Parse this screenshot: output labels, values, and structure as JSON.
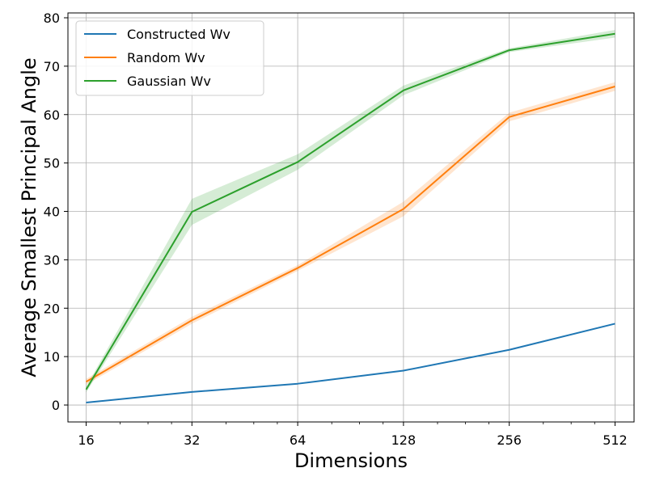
{
  "chart_data": {
    "type": "line",
    "title": "",
    "xlabel": "Dimensions",
    "ylabel": "Average Smallest Principal Angle",
    "x_scale": "log2",
    "x": [
      16,
      32,
      64,
      128,
      256,
      512
    ],
    "x_tick_labels": [
      "16",
      "32",
      "64",
      "128",
      "256",
      "512"
    ],
    "xlim": [
      14.2,
      580
    ],
    "ylim": [
      -3.5,
      81
    ],
    "y_ticks": [
      0,
      10,
      20,
      30,
      40,
      50,
      60,
      70,
      80
    ],
    "y_tick_labels": [
      "0",
      "10",
      "20",
      "30",
      "40",
      "50",
      "60",
      "70",
      "80"
    ],
    "grid": true,
    "legend": {
      "position": "top-left"
    },
    "series": [
      {
        "name": "Constructed Wv",
        "color": "#1f77b4",
        "values": [
          0.5,
          2.7,
          4.4,
          7.1,
          11.4,
          16.8
        ],
        "band_lower": [
          0.4,
          2.6,
          4.3,
          7.0,
          11.3,
          16.7
        ],
        "band_upper": [
          0.6,
          2.8,
          4.5,
          7.2,
          11.5,
          16.9
        ]
      },
      {
        "name": "Random Wv",
        "color": "#ff7f0e",
        "values": [
          4.8,
          17.5,
          28.3,
          40.5,
          59.5,
          65.8
        ],
        "band_lower": [
          4.2,
          16.8,
          27.7,
          39.0,
          58.6,
          64.9
        ],
        "band_upper": [
          5.4,
          18.2,
          28.9,
          42.0,
          60.4,
          66.7
        ]
      },
      {
        "name": "Gaussian Wv",
        "color": "#2ca02c",
        "values": [
          3.2,
          39.9,
          50.2,
          65.0,
          73.3,
          76.7
        ],
        "band_lower": [
          2.6,
          37.2,
          48.6,
          64.0,
          72.9,
          75.9
        ],
        "band_upper": [
          3.8,
          42.6,
          51.8,
          66.0,
          73.7,
          77.5
        ]
      }
    ]
  }
}
